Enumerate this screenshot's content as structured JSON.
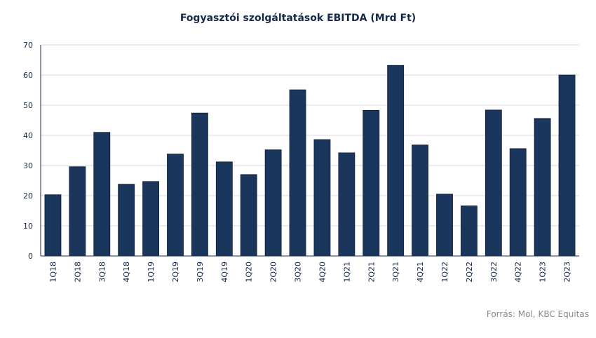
{
  "chart_data": {
    "type": "bar",
    "title": "Fogyasztói szolgáltatások EBITDA (Mrd Ft)",
    "categories": [
      "1Q18",
      "2Q18",
      "3Q18",
      "4Q18",
      "1Q19",
      "2Q19",
      "3Q19",
      "4Q19",
      "1Q20",
      "2Q20",
      "3Q20",
      "4Q20",
      "1Q21",
      "2Q21",
      "3Q21",
      "4Q21",
      "1Q22",
      "2Q22",
      "3Q22",
      "4Q22",
      "1Q23",
      "2Q23"
    ],
    "series": [
      {
        "values": [
          20.3,
          29.6,
          41.0,
          23.8,
          24.7,
          33.8,
          47.4,
          31.2,
          27.0,
          35.2,
          55.1,
          38.6,
          34.2,
          48.3,
          63.2,
          36.8,
          20.5,
          16.6,
          48.4,
          35.6,
          45.6,
          60.0
        ]
      }
    ],
    "ylim": [
      0,
      70
    ],
    "yticks": [
      0,
      10,
      20,
      30,
      40,
      50,
      60,
      70
    ],
    "grid": true,
    "bar_color": "#1b365d",
    "grid_color": "#d9d9d9"
  },
  "source": "Forrás: Mol, KBC Equitas"
}
